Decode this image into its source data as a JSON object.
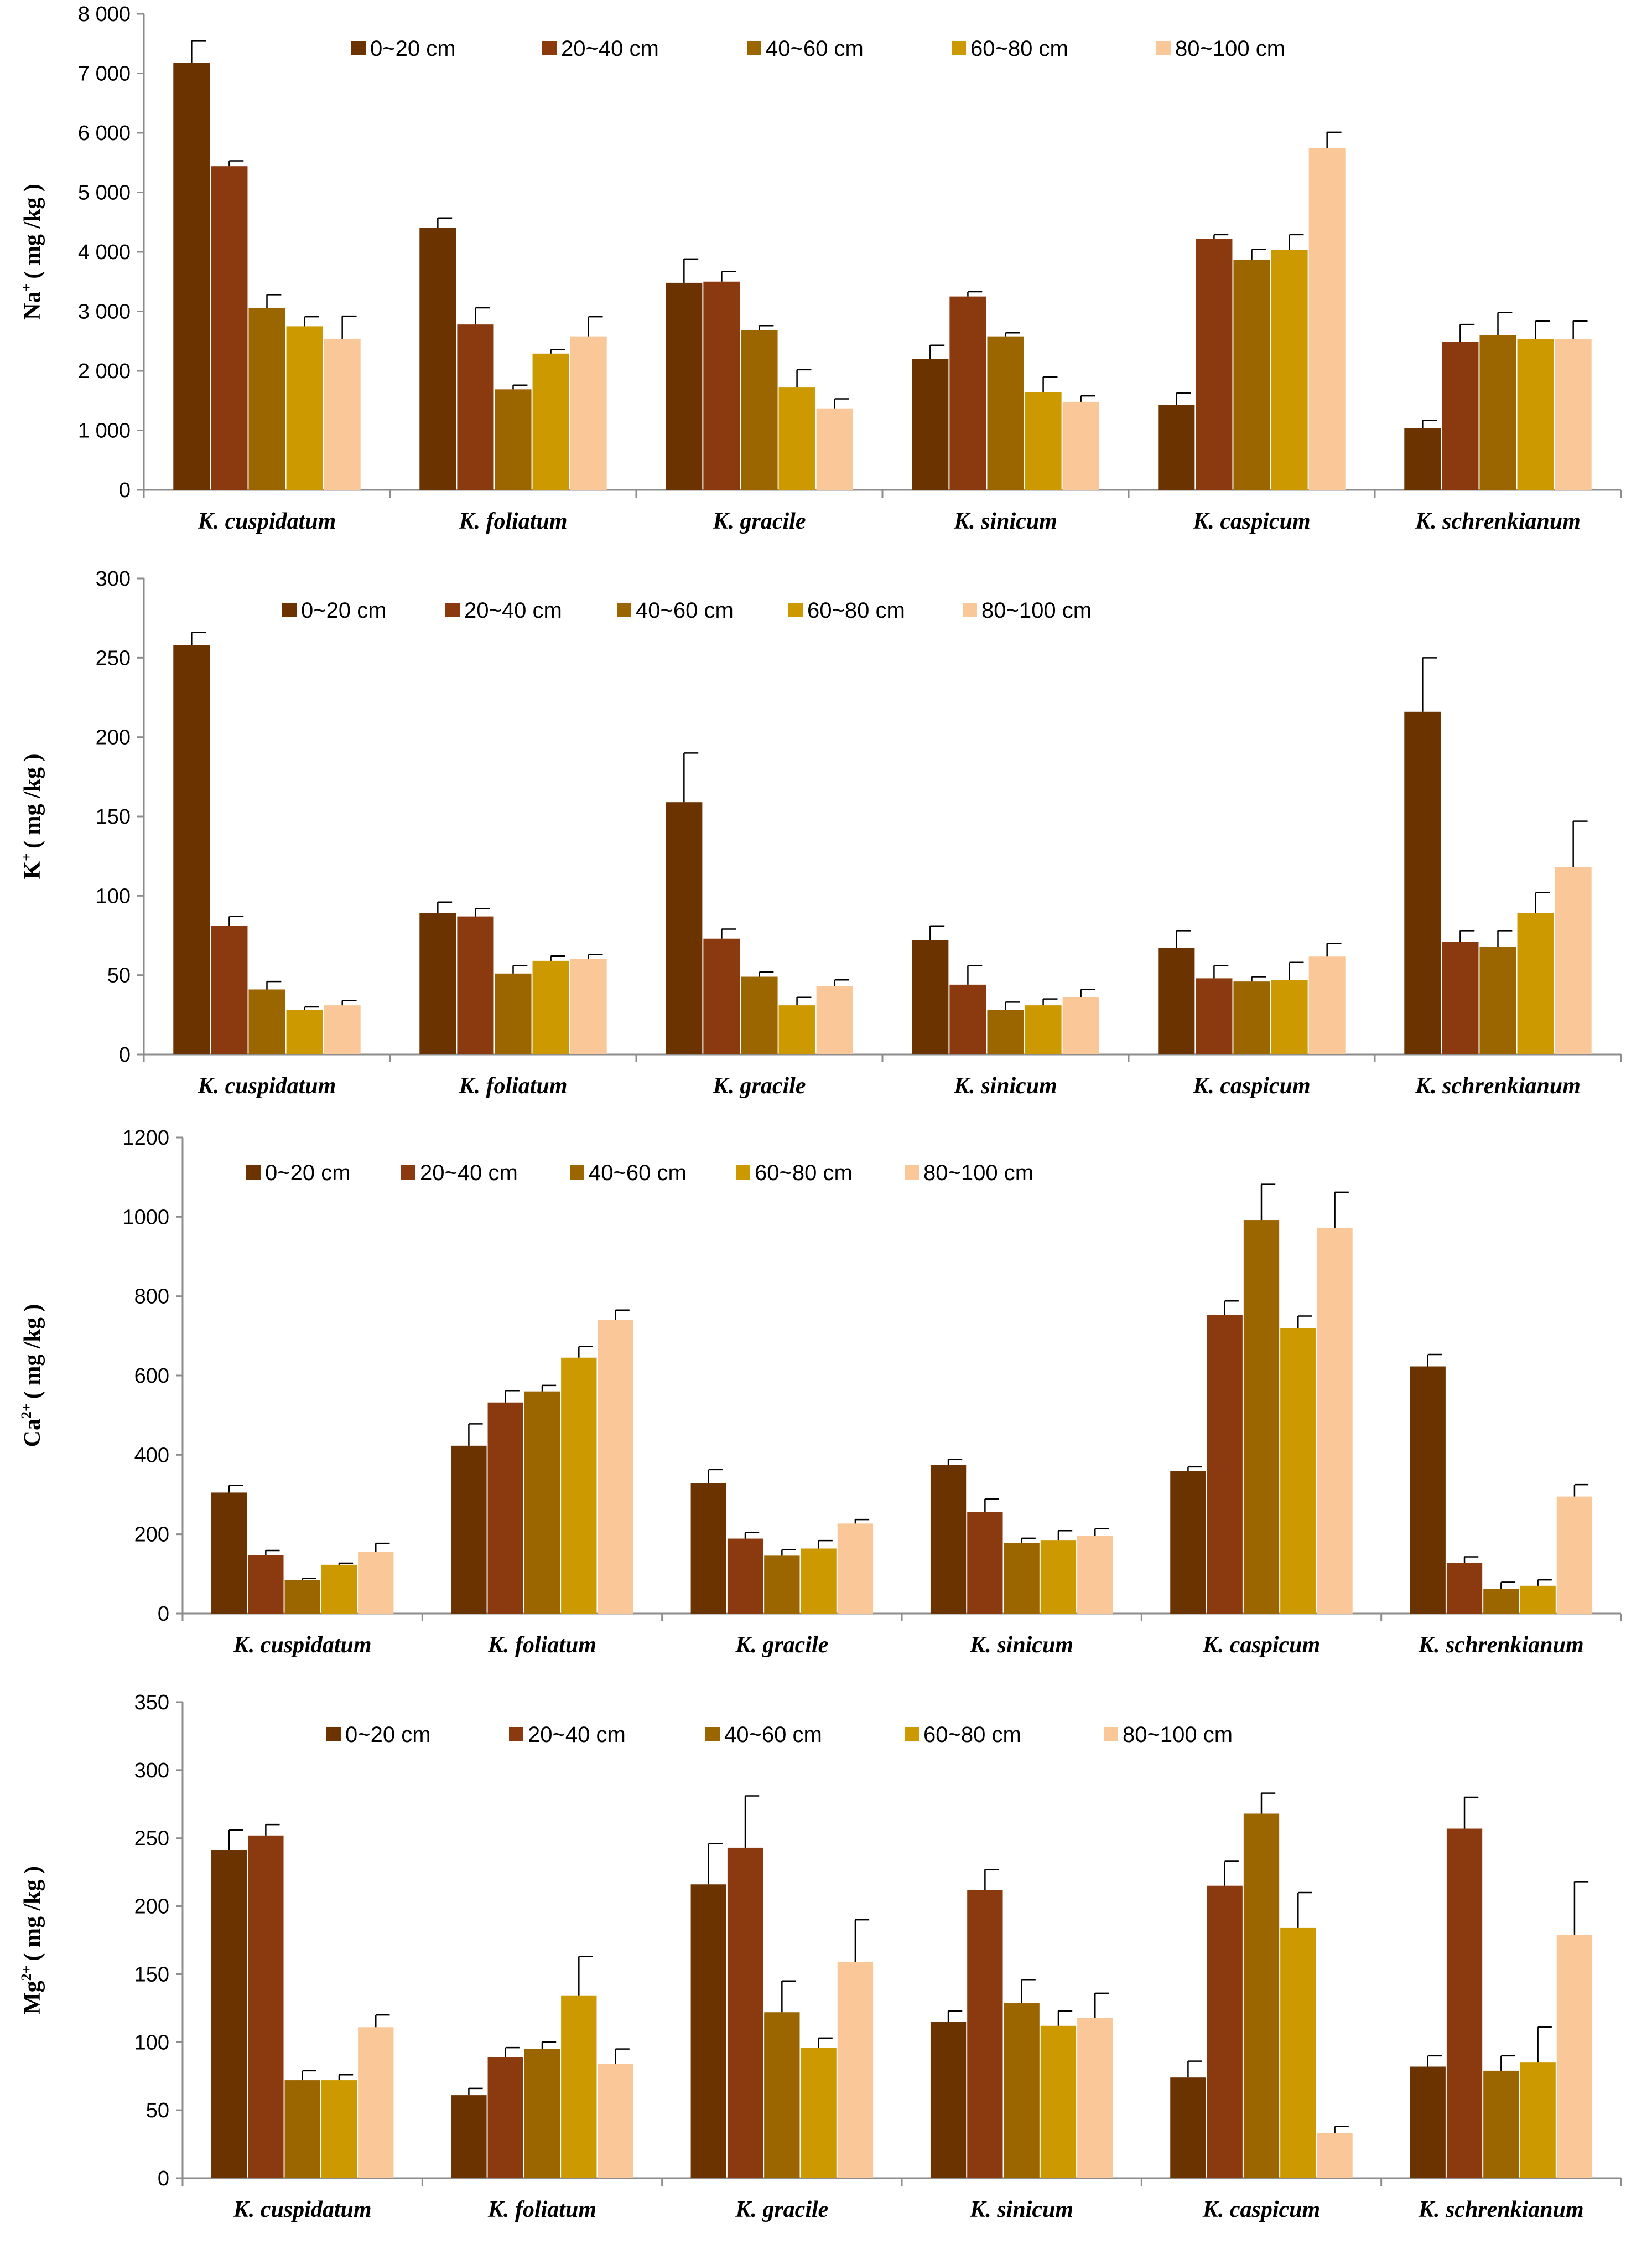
{
  "chart_data": [
    {
      "type": "bar",
      "ylabel": {
        "ion": "Na",
        "charge": "+",
        "unit": "( mg /kg )"
      },
      "ylim": [
        0,
        8000
      ],
      "yticks": [
        0,
        1000,
        2000,
        3000,
        4000,
        5000,
        6000,
        7000,
        8000
      ],
      "ytick_labels": [
        "0",
        "1 000",
        "2 000",
        "3 000",
        "4 000",
        "5 000",
        "6 000",
        "7 000",
        "8 000"
      ],
      "categories": [
        "K. cuspidatum",
        "K. foliatum",
        "K. gracile",
        "K. sinicum",
        "K. caspicum",
        "K. schrenkianum"
      ],
      "series": [
        {
          "name": "0~20 cm",
          "values": [
            7180,
            4400,
            3480,
            2200,
            1430,
            1040
          ],
          "errors": [
            370,
            170,
            400,
            230,
            200,
            130
          ]
        },
        {
          "name": "20~40 cm",
          "values": [
            5440,
            2780,
            3500,
            3250,
            4220,
            2490
          ],
          "errors": [
            90,
            280,
            170,
            80,
            70,
            290
          ]
        },
        {
          "name": "40~60 cm",
          "values": [
            3060,
            1690,
            2680,
            2580,
            3870,
            2600
          ],
          "errors": [
            220,
            70,
            80,
            60,
            170,
            380
          ]
        },
        {
          "name": "60~80 cm",
          "values": [
            2750,
            2290,
            1720,
            1640,
            4030,
            2530
          ],
          "errors": [
            160,
            70,
            300,
            260,
            260,
            310
          ]
        },
        {
          "name": "80~100 cm",
          "values": [
            2540,
            2580,
            1370,
            1480,
            5740,
            2530
          ],
          "errors": [
            380,
            330,
            160,
            100,
            270,
            310
          ]
        }
      ]
    },
    {
      "type": "bar",
      "ylabel": {
        "ion": "K",
        "charge": "+",
        "unit": "( mg /kg )"
      },
      "ylim": [
        0,
        300
      ],
      "yticks": [
        0,
        50,
        100,
        150,
        200,
        250,
        300
      ],
      "ytick_labels": [
        "0",
        "50",
        "100",
        "150",
        "200",
        "250",
        "300"
      ],
      "categories": [
        "K. cuspidatum",
        "K. foliatum",
        "K. gracile",
        "K. sinicum",
        "K. caspicum",
        "K. schrenkianum"
      ],
      "series": [
        {
          "name": "0~20 cm",
          "values": [
            258,
            89,
            159,
            72,
            67,
            216
          ],
          "errors": [
            8,
            7,
            31,
            9,
            11,
            34
          ]
        },
        {
          "name": "20~40 cm",
          "values": [
            81,
            87,
            73,
            44,
            48,
            71
          ],
          "errors": [
            6,
            5,
            6,
            12,
            8,
            7
          ]
        },
        {
          "name": "40~60 cm",
          "values": [
            41,
            51,
            49,
            28,
            46,
            68
          ],
          "errors": [
            5,
            5,
            3,
            5,
            3,
            10
          ]
        },
        {
          "name": "60~80 cm",
          "values": [
            28,
            59,
            31,
            31,
            47,
            89
          ],
          "errors": [
            2,
            3,
            5,
            4,
            11,
            13
          ]
        },
        {
          "name": "80~100 cm",
          "values": [
            31,
            60,
            43,
            36,
            62,
            118
          ],
          "errors": [
            3,
            3,
            4,
            5,
            8,
            29
          ]
        }
      ]
    },
    {
      "type": "bar",
      "ylabel": {
        "ion": "Ca",
        "charge": "2+",
        "unit": "( mg /kg )"
      },
      "ylim": [
        0,
        1200
      ],
      "yticks": [
        0,
        200,
        400,
        600,
        800,
        1000,
        1200
      ],
      "ytick_labels": [
        "0",
        "200",
        "400",
        "600",
        "800",
        "1000",
        "1200"
      ],
      "categories": [
        "K. cuspidatum",
        "K. foliatum",
        "K. gracile",
        "K. sinicum",
        "K. caspicum",
        "K. schrenkianum"
      ],
      "series": [
        {
          "name": "0~20 cm",
          "values": [
            305,
            423,
            328,
            374,
            360,
            623
          ],
          "errors": [
            18,
            55,
            35,
            15,
            10,
            30
          ]
        },
        {
          "name": "20~40 cm",
          "values": [
            147,
            532,
            189,
            256,
            753,
            128
          ],
          "errors": [
            12,
            30,
            15,
            33,
            35,
            15
          ]
        },
        {
          "name": "40~60 cm",
          "values": [
            84,
            560,
            146,
            178,
            992,
            62
          ],
          "errors": [
            5,
            15,
            15,
            12,
            90,
            17
          ]
        },
        {
          "name": "60~80 cm",
          "values": [
            123,
            645,
            164,
            184,
            720,
            70
          ],
          "errors": [
            4,
            28,
            20,
            25,
            30,
            15
          ]
        },
        {
          "name": "80~100 cm",
          "values": [
            155,
            740,
            227,
            196,
            972,
            295
          ],
          "errors": [
            22,
            25,
            10,
            18,
            90,
            30
          ]
        }
      ]
    },
    {
      "type": "bar",
      "ylabel": {
        "ion": "Mg",
        "charge": "2+",
        "unit": "( mg /kg )"
      },
      "ylim": [
        0,
        350
      ],
      "yticks": [
        0,
        50,
        100,
        150,
        200,
        250,
        300,
        350
      ],
      "ytick_labels": [
        "0",
        "50",
        "100",
        "150",
        "200",
        "250",
        "300",
        "350"
      ],
      "categories": [
        "K. cuspidatum",
        "K. foliatum",
        "K. gracile",
        "K. sinicum",
        "K. caspicum",
        "K. schrenkianum"
      ],
      "series": [
        {
          "name": "0~20 cm",
          "values": [
            241,
            61,
            216,
            115,
            74,
            82
          ],
          "errors": [
            15,
            5,
            30,
            8,
            12,
            8
          ]
        },
        {
          "name": "20~40 cm",
          "values": [
            252,
            89,
            243,
            212,
            215,
            257
          ],
          "errors": [
            8,
            7,
            38,
            15,
            18,
            23
          ]
        },
        {
          "name": "40~60 cm",
          "values": [
            72,
            95,
            122,
            129,
            268,
            79
          ],
          "errors": [
            7,
            5,
            23,
            17,
            15,
            11
          ]
        },
        {
          "name": "60~80 cm",
          "values": [
            72,
            134,
            96,
            112,
            184,
            85
          ],
          "errors": [
            4,
            29,
            7,
            11,
            26,
            26
          ]
        },
        {
          "name": "80~100 cm",
          "values": [
            111,
            84,
            159,
            118,
            33,
            179
          ],
          "errors": [
            9,
            11,
            31,
            18,
            5,
            39
          ]
        }
      ]
    }
  ],
  "series_colors": [
    "#6b3300",
    "#8b3a0f",
    "#9b6500",
    "#cc9900",
    "#fac898"
  ]
}
